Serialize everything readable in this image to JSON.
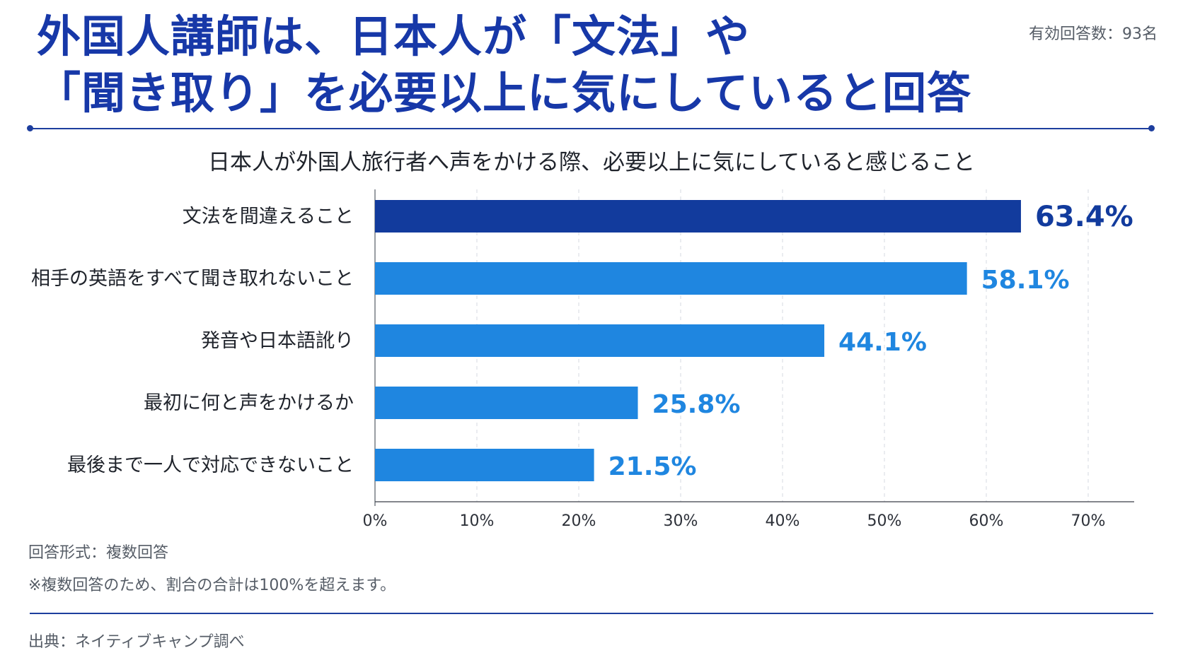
{
  "header": {
    "title_line1": "外国人講師は、日本人が「文法」や",
    "title_line2": "「聞き取り」を必要以上に気にしていると回答",
    "sample_size": "有効回答数：93名"
  },
  "chart_data": {
    "type": "bar",
    "orientation": "horizontal",
    "title": "日本人が外国人旅行者へ声をかける際、必要以上に気にしていると感じること",
    "categories": [
      "文法を間違えること",
      "相手の英語をすべて聞き取れないこと",
      "発音や日本語訛り",
      "最初に何と声をかけるか",
      "最後まで一人で対応できないこと"
    ],
    "values": [
      63.4,
      58.1,
      44.1,
      25.8,
      21.5
    ],
    "value_labels": [
      "63.4%",
      "58.1%",
      "44.1%",
      "25.8%",
      "21.5%"
    ],
    "x_ticks": [
      "0%",
      "10%",
      "20%",
      "30%",
      "40%",
      "50%",
      "60%",
      "70%"
    ],
    "xlim": [
      0,
      70
    ],
    "grid": true,
    "colors": {
      "highlight": "#123b9d",
      "bar": "#1f86e0",
      "label_highlight": "#123b9d",
      "label": "#1f86e0"
    }
  },
  "footer": {
    "answer_format": "回答形式：複数回答",
    "note": "※複数回答のため、割合の合計は100%を超えます。",
    "source": "出典：ネイティブキャンプ調べ"
  }
}
